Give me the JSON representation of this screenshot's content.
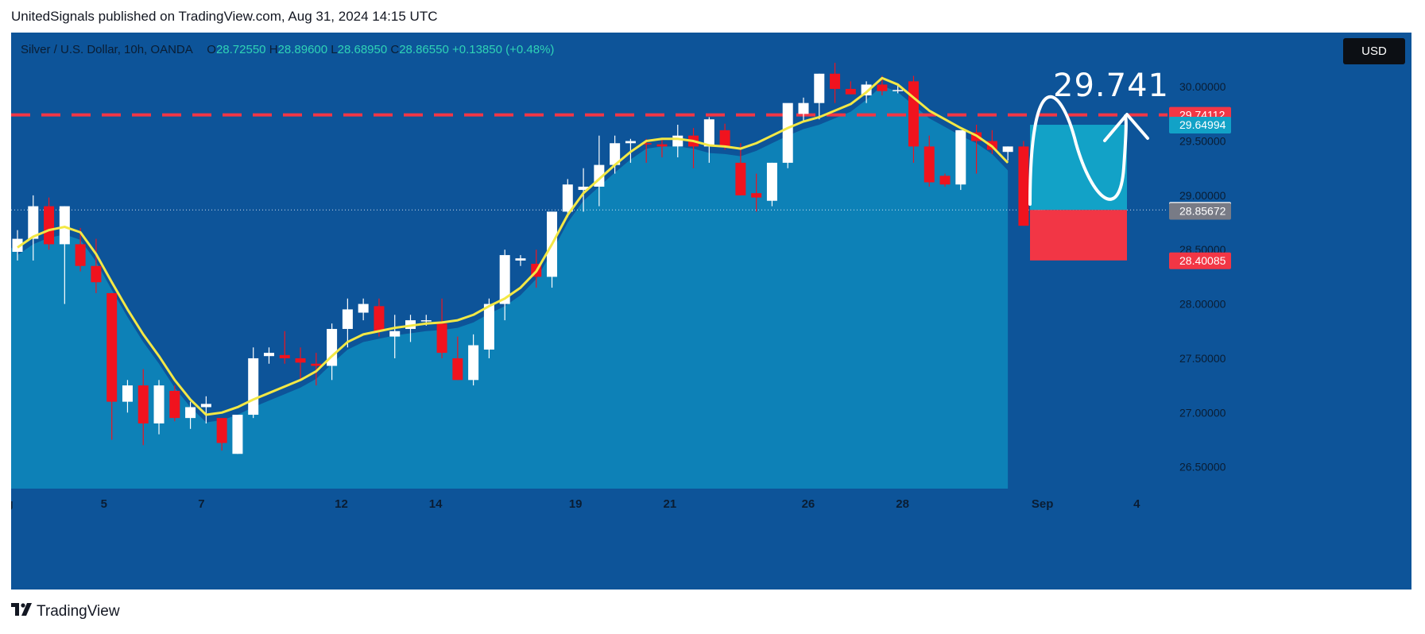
{
  "header": {
    "published_line": "UnitedSignals published on TradingView.com, Aug 31, 2024 14:15 UTC"
  },
  "legend": {
    "symbol": "Silver / U.S. Dollar, 10h, OANDA",
    "open_label": "O",
    "open": "28.72550",
    "high_label": "H",
    "high": "28.89600",
    "low_label": "L",
    "low": "28.68950",
    "close_label": "C",
    "close": "28.86550",
    "change": "+0.13850 (+0.48%)"
  },
  "currency_button": "USD",
  "target_annotation": "29.741",
  "footer": {
    "brand": "TradingView",
    "logo_icon": "tradingview-logo-icon"
  },
  "colors": {
    "background": "#0d5499",
    "area_fill": "#0e84b8",
    "up_candle": "#ffffff",
    "down_candle": "#f0131e",
    "ma_line": "#f3e845",
    "target_line": "#f23645",
    "target_zone": "#12a2c7",
    "stop_zone": "#f23645"
  },
  "chart_data": {
    "type": "candlestick",
    "symbol": "Silver / U.S. Dollar",
    "timeframe": "10h",
    "ylim": [
      26.3,
      30.25
    ],
    "y_ticks": [
      "26.50000",
      "27.00000",
      "27.50000",
      "28.00000",
      "28.50000",
      "29.00000",
      "29.50000",
      "30.00000"
    ],
    "y_tick_values": [
      26.5,
      27.0,
      27.5,
      28.0,
      28.5,
      29.0,
      29.5,
      30.0
    ],
    "x_ticks": [
      {
        "label": "g",
        "bar": -0.5
      },
      {
        "label": "5",
        "bar": 5.5
      },
      {
        "label": "7",
        "bar": 11.7
      },
      {
        "label": "12",
        "bar": 20.6
      },
      {
        "label": "14",
        "bar": 26.6
      },
      {
        "label": "19",
        "bar": 35.5
      },
      {
        "label": "21",
        "bar": 41.5
      },
      {
        "label": "26",
        "bar": 50.3
      },
      {
        "label": "28",
        "bar": 56.3
      },
      {
        "label": "Sep",
        "bar": 65.2
      },
      {
        "label": "4",
        "bar": 71.2
      }
    ],
    "candles": [
      [
        28.48,
        28.68,
        28.4,
        28.6
      ],
      [
        28.6,
        29.0,
        28.4,
        28.9
      ],
      [
        28.9,
        28.98,
        28.5,
        28.55
      ],
      [
        28.55,
        28.9,
        28.0,
        28.9
      ],
      [
        28.55,
        28.7,
        28.3,
        28.35
      ],
      [
        28.35,
        28.6,
        28.1,
        28.2
      ],
      [
        28.1,
        28.1,
        26.75,
        27.1
      ],
      [
        27.1,
        27.3,
        27.0,
        27.25
      ],
      [
        27.25,
        27.4,
        26.7,
        26.9
      ],
      [
        26.9,
        27.3,
        26.8,
        27.25
      ],
      [
        27.2,
        27.25,
        26.92,
        26.95
      ],
      [
        26.95,
        27.1,
        26.85,
        27.05
      ],
      [
        27.05,
        27.15,
        26.9,
        27.08
      ],
      [
        26.95,
        26.95,
        26.65,
        26.72
      ],
      [
        26.62,
        26.98,
        26.62,
        26.98
      ],
      [
        26.98,
        27.6,
        26.95,
        27.5
      ],
      [
        27.52,
        27.6,
        27.45,
        27.55
      ],
      [
        27.53,
        27.75,
        27.45,
        27.5
      ],
      [
        27.5,
        27.6,
        27.3,
        27.46
      ],
      [
        27.45,
        27.55,
        27.25,
        27.43
      ],
      [
        27.43,
        27.82,
        27.3,
        27.77
      ],
      [
        27.77,
        28.05,
        27.6,
        27.95
      ],
      [
        27.92,
        28.05,
        27.85,
        28.0
      ],
      [
        27.98,
        28.05,
        27.7,
        27.75
      ],
      [
        27.7,
        27.9,
        27.5,
        27.75
      ],
      [
        27.77,
        27.9,
        27.65,
        27.85
      ],
      [
        27.85,
        27.9,
        27.8,
        27.85
      ],
      [
        27.82,
        28.05,
        27.5,
        27.55
      ],
      [
        27.5,
        27.7,
        27.3,
        27.3
      ],
      [
        27.3,
        27.72,
        27.25,
        27.62
      ],
      [
        27.58,
        28.05,
        27.5,
        28.0
      ],
      [
        28.0,
        28.5,
        27.85,
        28.45
      ],
      [
        28.4,
        28.45,
        28.35,
        28.42
      ],
      [
        28.37,
        28.5,
        28.15,
        28.25
      ],
      [
        28.25,
        28.85,
        28.15,
        28.85
      ],
      [
        28.85,
        29.15,
        28.8,
        29.1
      ],
      [
        29.05,
        29.25,
        28.85,
        29.08
      ],
      [
        29.08,
        29.55,
        28.9,
        29.28
      ],
      [
        29.28,
        29.55,
        29.2,
        29.48
      ],
      [
        29.48,
        29.52,
        29.3,
        29.5
      ],
      [
        29.48,
        29.52,
        29.3,
        29.47
      ],
      [
        29.47,
        29.52,
        29.35,
        29.45
      ],
      [
        29.45,
        29.65,
        29.35,
        29.55
      ],
      [
        29.55,
        29.62,
        29.25,
        29.45
      ],
      [
        29.45,
        29.72,
        29.3,
        29.7
      ],
      [
        29.6,
        29.66,
        29.42,
        29.45
      ],
      [
        29.3,
        29.48,
        29.0,
        29.0
      ],
      [
        29.02,
        29.2,
        28.85,
        28.98
      ],
      [
        28.95,
        29.3,
        28.9,
        29.3
      ],
      [
        29.3,
        29.82,
        29.25,
        29.85
      ],
      [
        29.75,
        29.9,
        29.68,
        29.85
      ],
      [
        29.85,
        30.12,
        29.7,
        30.12
      ],
      [
        30.12,
        30.22,
        29.85,
        29.98
      ],
      [
        29.98,
        30.05,
        29.95,
        29.93
      ],
      [
        29.92,
        30.05,
        29.85,
        30.02
      ],
      [
        30.02,
        30.1,
        29.92,
        29.96
      ],
      [
        29.96,
        30.02,
        29.94,
        29.97
      ],
      [
        30.05,
        30.1,
        29.3,
        29.45
      ],
      [
        29.45,
        29.55,
        29.08,
        29.12
      ],
      [
        29.18,
        29.2,
        29.08,
        29.1
      ],
      [
        29.1,
        29.58,
        29.05,
        29.6
      ],
      [
        29.58,
        29.65,
        29.2,
        29.5
      ],
      [
        29.5,
        29.6,
        29.38,
        29.42
      ],
      [
        29.4,
        29.45,
        29.32,
        29.45
      ],
      [
        29.45,
        29.5,
        28.72,
        28.72
      ],
      [
        28.7255,
        28.896,
        28.6895,
        28.8655
      ]
    ],
    "ma_line": [
      28.52,
      28.62,
      28.68,
      28.71,
      28.66,
      28.46,
      28.2,
      27.95,
      27.72,
      27.52,
      27.3,
      27.12,
      26.98,
      27.0,
      27.05,
      27.12,
      27.18,
      27.24,
      27.3,
      27.38,
      27.52,
      27.65,
      27.72,
      27.75,
      27.78,
      27.8,
      27.82,
      27.83,
      27.85,
      27.9,
      27.98,
      28.05,
      28.15,
      28.3,
      28.55,
      28.82,
      29.02,
      29.15,
      29.28,
      29.4,
      29.5,
      29.52,
      29.52,
      29.5,
      29.46,
      29.45,
      29.43,
      29.48,
      29.55,
      29.62,
      29.68,
      29.72,
      29.78,
      29.84,
      29.95,
      30.08,
      30.02,
      29.9,
      29.78,
      29.7,
      29.62,
      29.55,
      29.45,
      29.3
    ],
    "ma_start_bar": 0,
    "current_price": 28.8655,
    "price_labels": [
      {
        "text": "29.74112",
        "value": 29.74112,
        "color": "#f23645"
      },
      {
        "text": "29.64994",
        "value": 29.64994,
        "color": "#12a2c7"
      },
      {
        "text": "28.86550",
        "value": 28.8655,
        "color": "#ffffff"
      },
      {
        "text": "28.85672",
        "value": 28.85672,
        "color": "#787b86"
      },
      {
        "text": "28.40085",
        "value": 28.40085,
        "color": "#f23645"
      }
    ],
    "target_level": 29.74112,
    "long_position": {
      "entry": 28.8655,
      "target": 29.64994,
      "stop": 28.40085
    }
  }
}
